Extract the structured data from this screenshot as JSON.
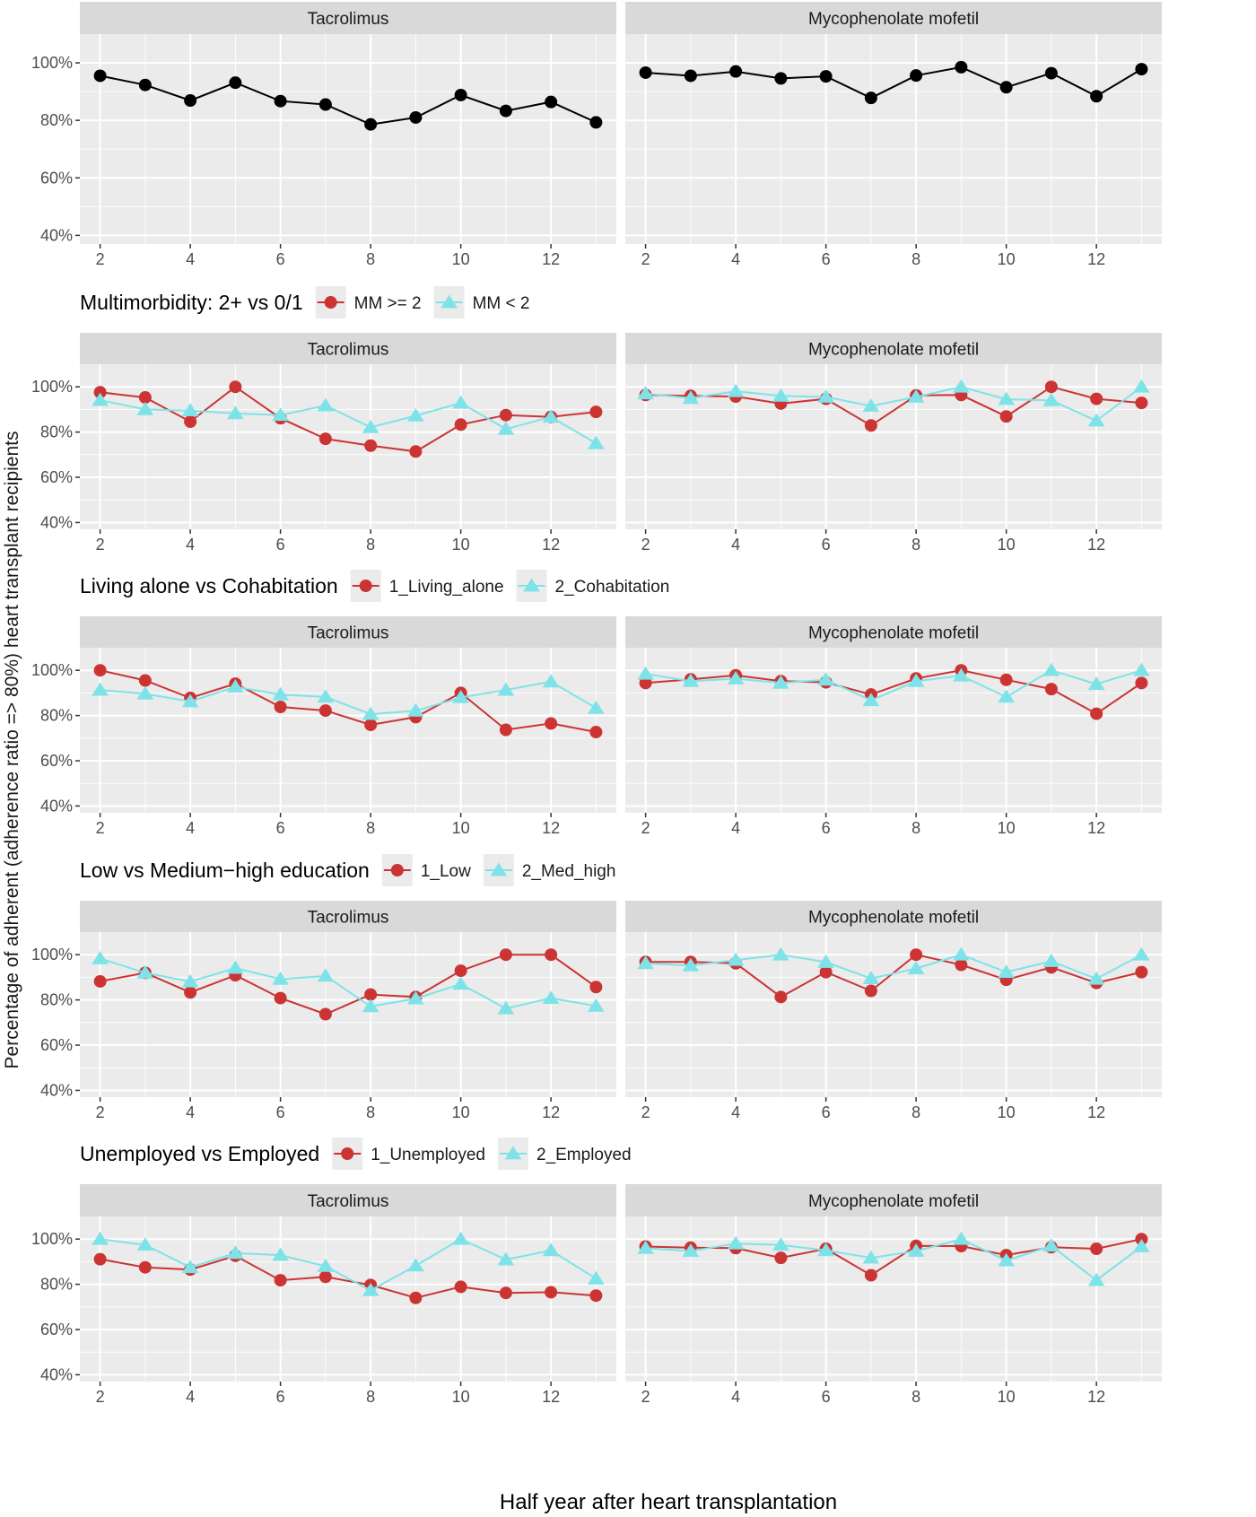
{
  "figure": {
    "ylabel": "Percentage of adherent (adherence ratio => 80%) heart transplant recipients",
    "xlabel": "Half year after heart transplantation"
  },
  "colors": {
    "panel_bg": "#ebebeb",
    "strip_bg": "#d9d9d9",
    "grid": "#ffffff",
    "overall": "#000000",
    "group1": "#cc3333",
    "group2": "#7ee3e8"
  },
  "chart_data": [
    {
      "type": "line",
      "legend_title": "",
      "legend_entries": [],
      "panels": [
        {
          "title": "Tacrolimus",
          "series": [
            {
              "name": "",
              "marker": "circle",
              "color": "#000000",
              "x": [
                2,
                3,
                4,
                5,
                6,
                7,
                8,
                9,
                10,
                11,
                12,
                13
              ],
              "y": [
                95.5,
                92.3,
                86.9,
                93.1,
                86.7,
                85.5,
                78.6,
                81.0,
                88.8,
                83.3,
                86.4,
                79.3
              ]
            }
          ]
        },
        {
          "title": "Mycophenolate mofetil",
          "series": [
            {
              "name": "",
              "marker": "circle",
              "color": "#000000",
              "x": [
                2,
                3,
                4,
                5,
                6,
                7,
                8,
                9,
                10,
                11,
                12,
                13
              ],
              "y": [
                96.6,
                95.5,
                97.0,
                94.6,
                95.3,
                87.8,
                95.6,
                98.5,
                91.5,
                96.4,
                88.4,
                97.8
              ]
            }
          ]
        }
      ],
      "x_ticks": [
        2,
        4,
        6,
        8,
        10,
        12
      ],
      "xlim": [
        1.55,
        13.45
      ],
      "y_ticks": [
        40,
        60,
        80,
        100
      ],
      "ylim": [
        37,
        110
      ],
      "y_tick_suffix": "%"
    },
    {
      "type": "line",
      "legend_title": "Multimorbidity: 2+ vs 0/1",
      "legend_entries": [
        "MM >= 2",
        "MM < 2"
      ],
      "panels": [
        {
          "title": "Tacrolimus",
          "series": [
            {
              "name": "MM >= 2",
              "marker": "circle",
              "color": "#cc3333",
              "x": [
                2,
                3,
                4,
                5,
                6,
                7,
                8,
                9,
                10,
                11,
                12,
                13
              ],
              "y": [
                97.6,
                95.3,
                84.6,
                100,
                86.1,
                77.0,
                74.0,
                71.4,
                83.3,
                87.5,
                86.7,
                88.9
              ]
            },
            {
              "name": "MM < 2",
              "marker": "triangle",
              "color": "#7ee3e8",
              "x": [
                2,
                3,
                4,
                5,
                6,
                7,
                8,
                9,
                10,
                11,
                12,
                13
              ],
              "y": [
                94.1,
                90.0,
                89.5,
                88.2,
                87.5,
                91.7,
                82.1,
                87.2,
                92.9,
                81.3,
                86.7,
                75.0
              ]
            }
          ]
        },
        {
          "title": "Mycophenolate mofetil",
          "series": [
            {
              "name": "MM >= 2",
              "marker": "circle",
              "color": "#cc3333",
              "x": [
                2,
                3,
                4,
                5,
                6,
                7,
                8,
                9,
                10,
                11,
                12,
                13
              ],
              "y": [
                96.4,
                96.0,
                95.7,
                92.6,
                94.7,
                82.9,
                96.2,
                96.4,
                86.9,
                100,
                94.7,
                92.9
              ]
            },
            {
              "name": "MM < 2",
              "marker": "triangle",
              "color": "#7ee3e8",
              "x": [
                2,
                3,
                4,
                5,
                6,
                7,
                8,
                9,
                10,
                11,
                12,
                13
              ],
              "y": [
                97.0,
                95.0,
                98.0,
                96.0,
                95.5,
                91.5,
                95.5,
                100,
                94.5,
                94.0,
                85.0,
                100
              ]
            }
          ]
        }
      ],
      "x_ticks": [
        2,
        4,
        6,
        8,
        10,
        12
      ],
      "xlim": [
        1.55,
        13.45
      ],
      "y_ticks": [
        40,
        60,
        80,
        100
      ],
      "ylim": [
        37,
        110
      ],
      "y_tick_suffix": "%"
    },
    {
      "type": "line",
      "legend_title": "Living alone vs Cohabitation",
      "legend_entries": [
        "1_Living_alone",
        "2_Cohabitation"
      ],
      "panels": [
        {
          "title": "Tacrolimus",
          "series": [
            {
              "name": "1_Living_alone",
              "marker": "circle",
              "color": "#cc3333",
              "x": [
                2,
                3,
                4,
                5,
                6,
                7,
                8,
                9,
                10,
                11,
                12,
                13
              ],
              "y": [
                100,
                95.5,
                87.8,
                94.1,
                83.8,
                82.2,
                75.9,
                79.3,
                90.0,
                73.7,
                76.5,
                72.7
              ]
            },
            {
              "name": "2_Cohabitation",
              "marker": "triangle",
              "color": "#7ee3e8",
              "x": [
                2,
                3,
                4,
                5,
                6,
                7,
                8,
                9,
                10,
                11,
                12,
                13
              ],
              "y": [
                91.3,
                89.6,
                86.2,
                92.7,
                89.3,
                88.2,
                80.6,
                82.1,
                88.0,
                91.3,
                95.0,
                83.3
              ]
            }
          ]
        },
        {
          "title": "Mycophenolate mofetil",
          "series": [
            {
              "name": "1_Living_alone",
              "marker": "circle",
              "color": "#cc3333",
              "x": [
                2,
                3,
                4,
                5,
                6,
                7,
                8,
                9,
                10,
                11,
                12,
                13
              ],
              "y": [
                94.4,
                96.0,
                97.8,
                95.2,
                94.7,
                89.3,
                96.4,
                100,
                95.8,
                91.7,
                80.8,
                94.4
              ]
            },
            {
              "name": "2_Cohabitation",
              "marker": "triangle",
              "color": "#7ee3e8",
              "x": [
                2,
                3,
                4,
                5,
                6,
                7,
                8,
                9,
                10,
                11,
                12,
                13
              ],
              "y": [
                98.4,
                95.2,
                96.3,
                94.4,
                95.8,
                86.7,
                95.2,
                97.6,
                88.2,
                100,
                93.9,
                100
              ]
            }
          ]
        }
      ],
      "x_ticks": [
        2,
        4,
        6,
        8,
        10,
        12
      ],
      "xlim": [
        1.55,
        13.45
      ],
      "y_ticks": [
        40,
        60,
        80,
        100
      ],
      "ylim": [
        37,
        110
      ],
      "y_tick_suffix": "%"
    },
    {
      "type": "line",
      "legend_title": "Low vs Medium−high education",
      "legend_entries": [
        "1_Low",
        "2_Med_high"
      ],
      "panels": [
        {
          "title": "Tacrolimus",
          "series": [
            {
              "name": "1_Low",
              "marker": "circle",
              "color": "#cc3333",
              "x": [
                2,
                3,
                4,
                5,
                6,
                7,
                8,
                9,
                10,
                11,
                12,
                13
              ],
              "y": [
                88.2,
                92.0,
                83.3,
                90.9,
                80.8,
                73.7,
                82.4,
                81.3,
                92.9,
                100,
                100,
                85.7
              ]
            },
            {
              "name": "2_Med_high",
              "marker": "triangle",
              "color": "#7ee3e8",
              "x": [
                2,
                3,
                4,
                5,
                6,
                7,
                8,
                9,
                10,
                11,
                12,
                13
              ],
              "y": [
                98.3,
                92.0,
                88.1,
                94.1,
                89.2,
                90.6,
                77.1,
                80.6,
                87.0,
                76.2,
                80.8,
                77.3
              ]
            }
          ]
        },
        {
          "title": "Mycophenolate mofetil",
          "series": [
            {
              "name": "1_Low",
              "marker": "circle",
              "color": "#cc3333",
              "x": [
                2,
                3,
                4,
                5,
                6,
                7,
                8,
                9,
                10,
                11,
                12,
                13
              ],
              "y": [
                96.8,
                96.8,
                96.2,
                81.3,
                92.3,
                84.0,
                100,
                95.5,
                88.9,
                94.4,
                87.5,
                92.3
              ]
            },
            {
              "name": "2_Med_high",
              "marker": "triangle",
              "color": "#7ee3e8",
              "x": [
                2,
                3,
                4,
                5,
                6,
                7,
                8,
                9,
                10,
                11,
                12,
                13
              ],
              "y": [
                96.2,
                95.2,
                97.6,
                100,
                96.7,
                89.5,
                93.9,
                100,
                92.3,
                97.1,
                89.3,
                100
              ]
            }
          ]
        }
      ],
      "x_ticks": [
        2,
        4,
        6,
        8,
        10,
        12
      ],
      "xlim": [
        1.55,
        13.45
      ],
      "y_ticks": [
        40,
        60,
        80,
        100
      ],
      "ylim": [
        37,
        110
      ],
      "y_tick_suffix": "%"
    },
    {
      "type": "line",
      "legend_title": "Unemployed vs Employed",
      "legend_entries": [
        "1_Unemployed",
        "2_Employed"
      ],
      "panels": [
        {
          "title": "Tacrolimus",
          "series": [
            {
              "name": "1_Unemployed",
              "marker": "circle",
              "color": "#cc3333",
              "x": [
                2,
                3,
                4,
                5,
                6,
                7,
                8,
                9,
                10,
                11,
                12,
                13
              ],
              "y": [
                91.1,
                87.5,
                86.5,
                92.6,
                81.8,
                83.3,
                79.7,
                74.0,
                78.9,
                76.2,
                76.5,
                75.0
              ]
            },
            {
              "name": "2_Employed",
              "marker": "triangle",
              "color": "#7ee3e8",
              "x": [
                2,
                3,
                4,
                5,
                6,
                7,
                8,
                9,
                10,
                11,
                12,
                13
              ],
              "y": [
                100,
                97.4,
                87.5,
                93.8,
                92.9,
                88.0,
                77.3,
                88.2,
                100,
                90.9,
                95.0,
                82.5
              ]
            }
          ]
        },
        {
          "title": "Mycophenolate mofetil",
          "series": [
            {
              "name": "1_Unemployed",
              "marker": "circle",
              "color": "#cc3333",
              "x": [
                2,
                3,
                4,
                5,
                6,
                7,
                8,
                9,
                10,
                11,
                12,
                13
              ],
              "y": [
                96.7,
                96.2,
                96.0,
                91.7,
                95.7,
                84.0,
                97.0,
                96.9,
                92.9,
                96.4,
                95.7,
                100
              ]
            },
            {
              "name": "2_Employed",
              "marker": "triangle",
              "color": "#7ee3e8",
              "x": [
                2,
                3,
                4,
                5,
                6,
                7,
                8,
                9,
                10,
                11,
                12,
                13
              ],
              "y": [
                96.0,
                94.7,
                98.0,
                97.4,
                95.0,
                91.7,
                94.7,
                100,
                90.5,
                97.0,
                81.8,
                96.7
              ]
            }
          ]
        }
      ],
      "x_ticks": [
        2,
        4,
        6,
        8,
        10,
        12
      ],
      "xlim": [
        1.55,
        13.45
      ],
      "y_ticks": [
        40,
        60,
        80,
        100
      ],
      "ylim": [
        37,
        110
      ],
      "y_tick_suffix": "%"
    }
  ]
}
